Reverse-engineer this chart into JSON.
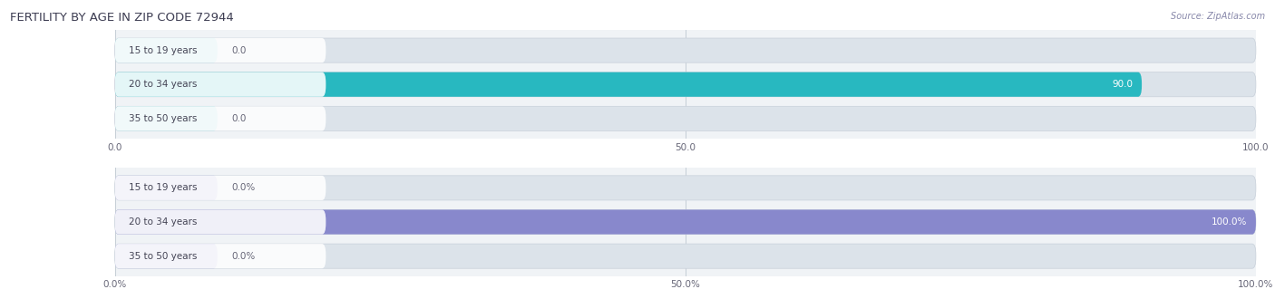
{
  "title": "FERTILITY BY AGE IN ZIP CODE 72944",
  "source": "Source: ZipAtlas.com",
  "chart1": {
    "categories": [
      "15 to 19 years",
      "20 to 34 years",
      "35 to 50 years"
    ],
    "values": [
      0.0,
      90.0,
      0.0
    ],
    "bar_color": "#28b8c0",
    "bar_color_light": "#90d5da",
    "bg_color": "#f0f3f6",
    "bar_bg_color": "#dce3ea",
    "label_bg_color": "#ffffff",
    "xlim": [
      0,
      100
    ],
    "xticks": [
      0.0,
      50.0,
      100.0
    ]
  },
  "chart2": {
    "categories": [
      "15 to 19 years",
      "20 to 34 years",
      "35 to 50 years"
    ],
    "values": [
      0.0,
      100.0,
      0.0
    ],
    "bar_color": "#8888cc",
    "bar_color_light": "#aaaadd",
    "bg_color": "#f0f3f6",
    "bar_bg_color": "#dce3ea",
    "label_bg_color": "#ffffff",
    "xlim": [
      0,
      100
    ],
    "xticks": [
      0.0,
      50.0,
      100.0
    ]
  },
  "figsize": [
    14.06,
    3.3
  ],
  "dpi": 100,
  "title_color": "#3d3d52",
  "source_color": "#8888aa",
  "tick_color": "#666677",
  "value_color_inside": "#ffffff",
  "value_color_outside": "#666677",
  "bar_height": 0.72,
  "small_bar_width": 9,
  "label_fontsize": 7.5,
  "value_fontsize": 7.5,
  "tick_fontsize": 7.5,
  "title_fontsize": 9.5
}
